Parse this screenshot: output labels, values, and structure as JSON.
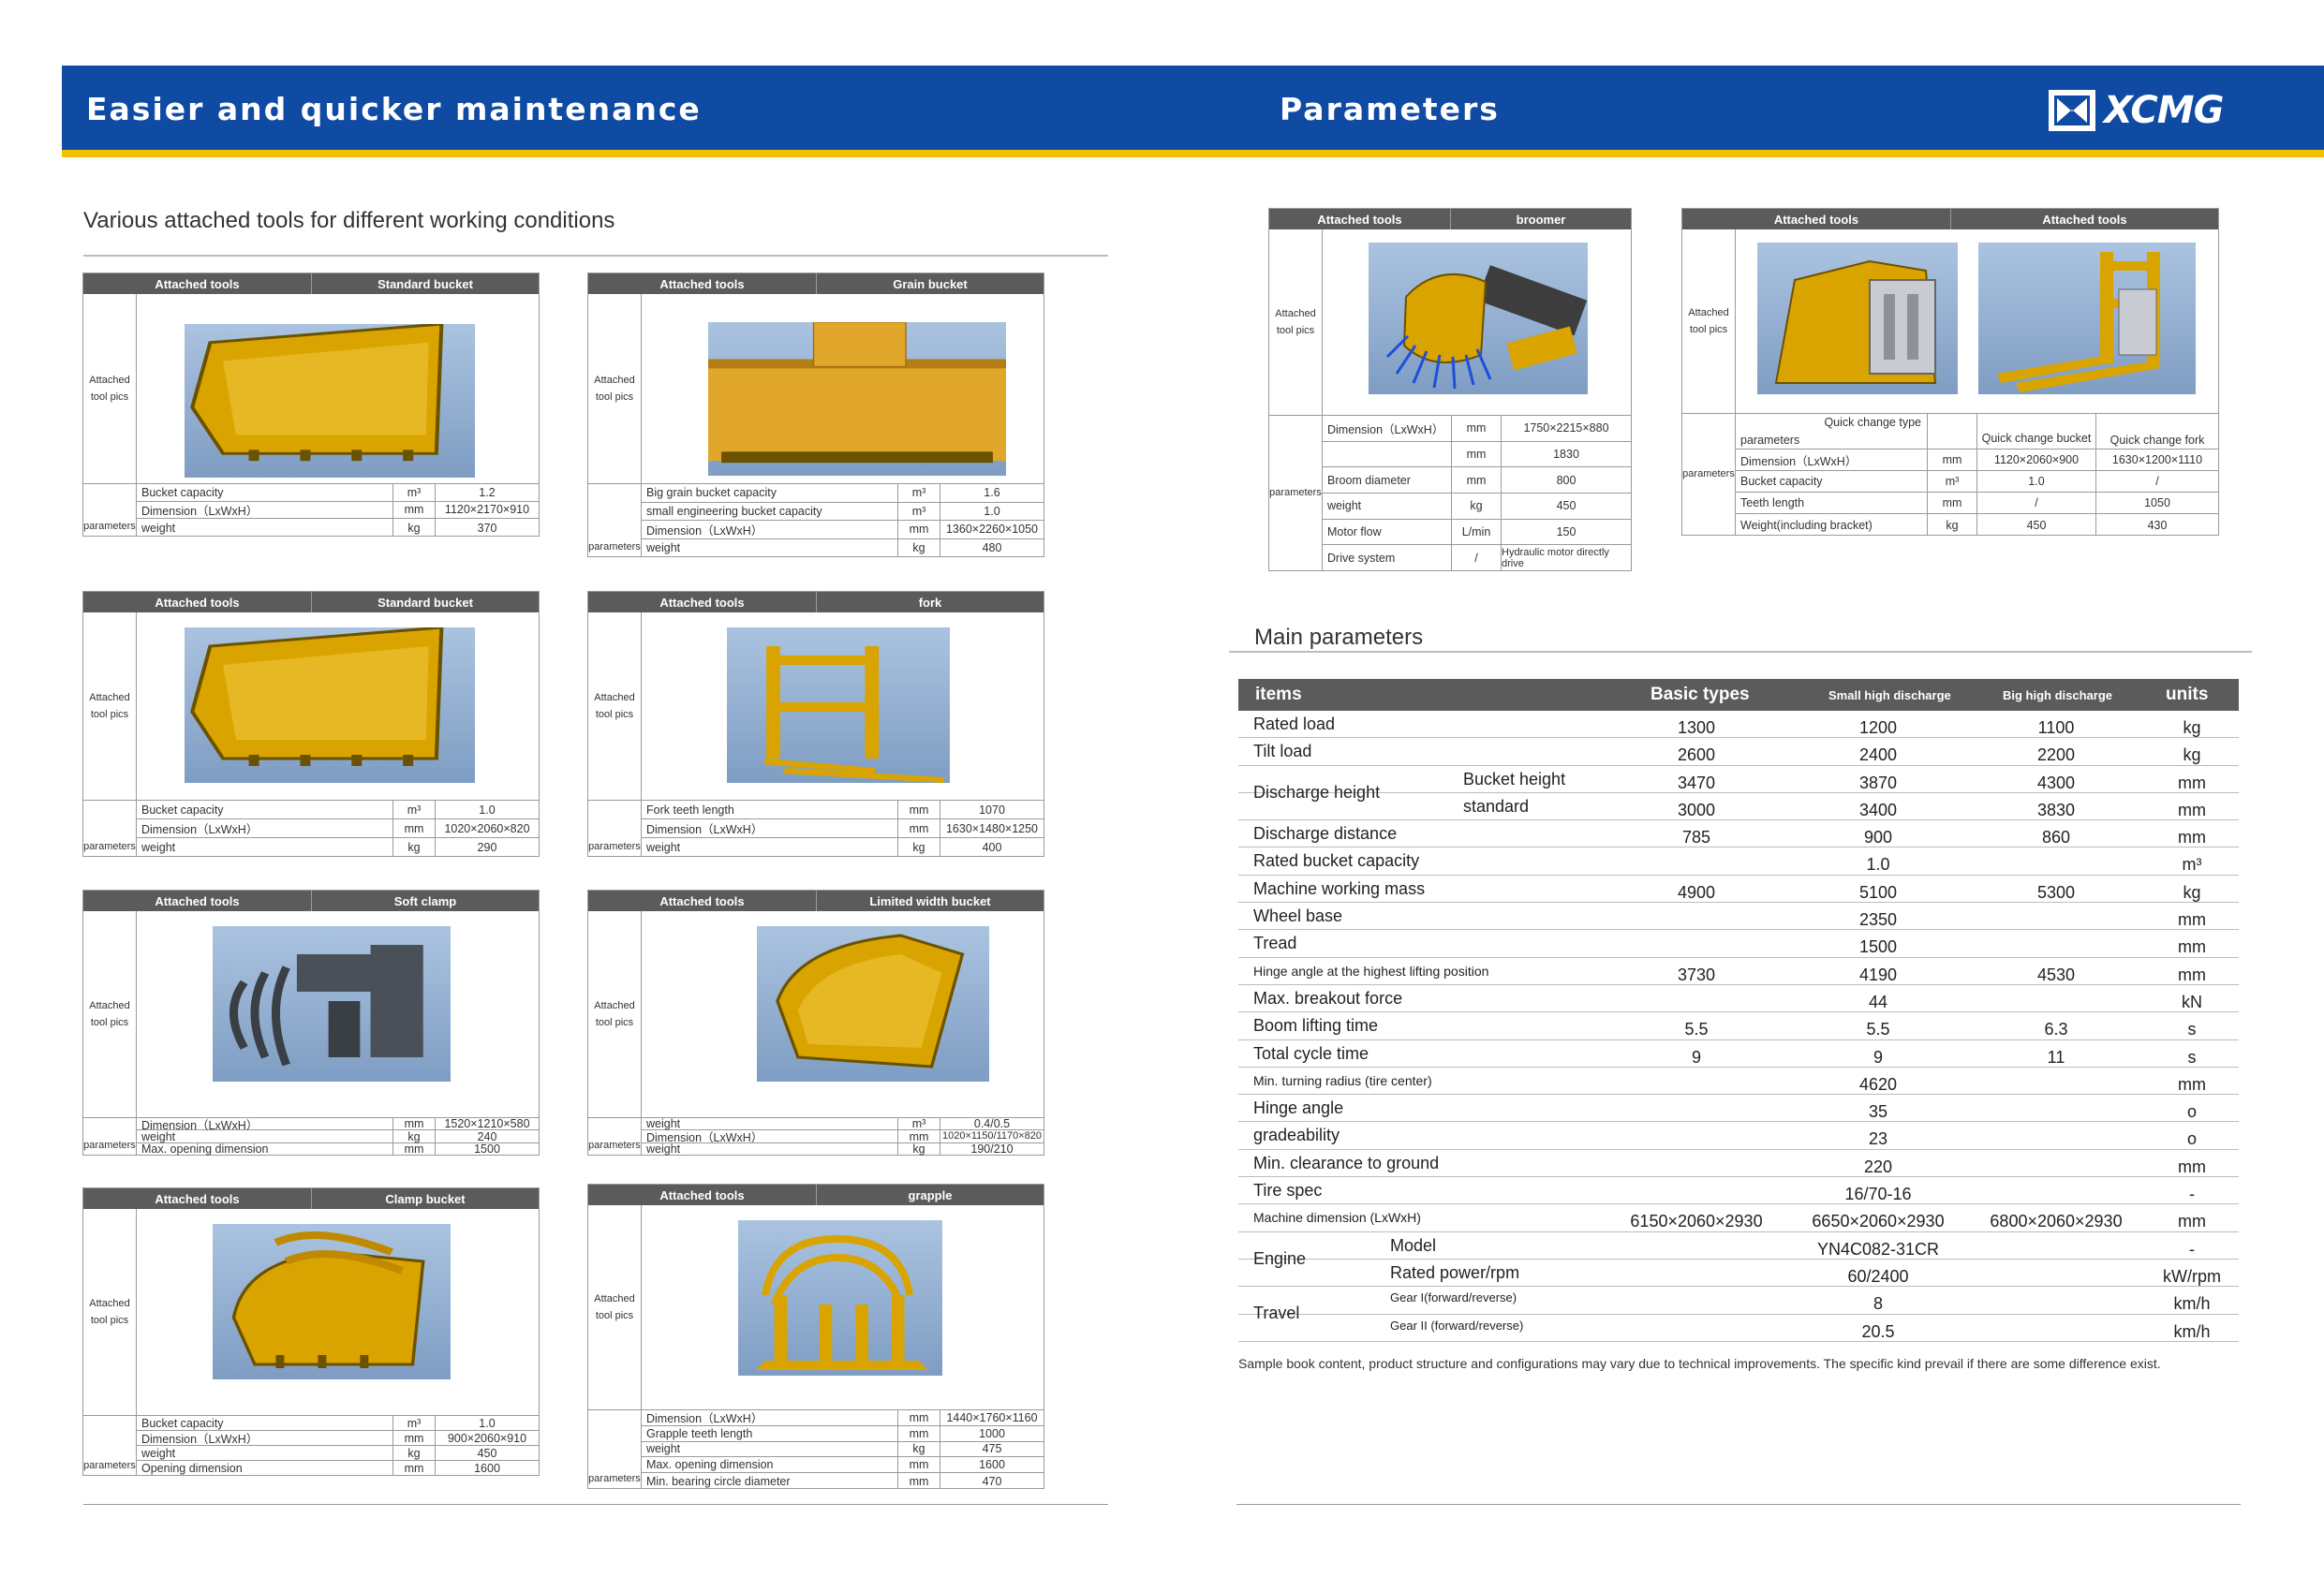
{
  "header": {
    "left_title": "Easier and quicker maintenance",
    "right_title": "Parameters",
    "logo_text": "XCMG",
    "banner_color": "#0f4aa3",
    "stripe_color": "#f2c100"
  },
  "left": {
    "section_title": "Various attached tools for different working conditions",
    "cards": [
      {
        "head": [
          "Attached tools",
          "Standard bucket"
        ],
        "pic_label": "Attached tool pics",
        "param_label": "parameters",
        "pic_icon": "bucket-icon",
        "rows": [
          [
            "Bucket capacity",
            "m³",
            "1.2"
          ],
          [
            "Dimension（LxWxH）",
            "mm",
            "1120×2170×910"
          ],
          [
            "weight",
            "kg",
            "370"
          ]
        ]
      },
      {
        "head": [
          "Attached tools",
          "Grain bucket"
        ],
        "pic_label": "Attached tool pics",
        "param_label": "parameters",
        "pic_icon": "grain-bucket-icon",
        "rows": [
          [
            "Big grain bucket capacity",
            "m³",
            "1.6"
          ],
          [
            "small engineering bucket capacity",
            "m³",
            "1.0"
          ],
          [
            "Dimension（LxWxH）",
            "mm",
            "1360×2260×1050"
          ],
          [
            "weight",
            "kg",
            "480"
          ]
        ]
      },
      {
        "head": [
          "Attached tools",
          "Standard bucket"
        ],
        "pic_label": "Attached tool pics",
        "param_label": "parameters",
        "pic_icon": "bucket-icon",
        "rows": [
          [
            "Bucket capacity",
            "m³",
            "1.0"
          ],
          [
            "Dimension（LxWxH）",
            "mm",
            "1020×2060×820"
          ],
          [
            "weight",
            "kg",
            "290"
          ]
        ]
      },
      {
        "head": [
          "Attached tools",
          "fork"
        ],
        "pic_label": "Attached tool pics",
        "param_label": "parameters",
        "pic_icon": "fork-icon",
        "rows": [
          [
            "Fork teeth length",
            "mm",
            "1070"
          ],
          [
            "Dimension（LxWxH）",
            "mm",
            "1630×1480×1250"
          ],
          [
            "weight",
            "kg",
            "400"
          ]
        ]
      },
      {
        "head": [
          "Attached tools",
          "Soft clamp"
        ],
        "pic_label": "Attached tool pics",
        "param_label": "parameters",
        "pic_icon": "soft-clamp-icon",
        "rows": [
          [
            "Dimension（LxWxH）",
            "mm",
            "1520×1210×580"
          ],
          [
            "weight",
            "kg",
            "240"
          ],
          [
            "Max. opening dimension",
            "mm",
            "1500"
          ]
        ]
      },
      {
        "head": [
          "Attached tools",
          "Limited width bucket"
        ],
        "pic_label": "Attached tool pics",
        "param_label": "parameters",
        "pic_icon": "limited-bucket-icon",
        "rows": [
          [
            "weight",
            "m³",
            "0.4/0.5"
          ],
          [
            "Dimension（LxWxH）",
            "mm",
            "1020×1150/1170×820"
          ],
          [
            "weight",
            "kg",
            "190/210"
          ]
        ]
      },
      {
        "head": [
          "Attached tools",
          "Clamp bucket"
        ],
        "pic_label": "Attached tool pics",
        "param_label": "parameters",
        "pic_icon": "clamp-bucket-icon",
        "rows": [
          [
            "Bucket capacity",
            "m³",
            "1.0"
          ],
          [
            "Dimension（LxWxH）",
            "mm",
            "900×2060×910"
          ],
          [
            "weight",
            "kg",
            "450"
          ],
          [
            "Opening dimension",
            "mm",
            "1600"
          ]
        ]
      },
      {
        "head": [
          "Attached tools",
          "grapple"
        ],
        "pic_label": "Attached tool pics",
        "param_label": "parameters",
        "pic_icon": "grapple-icon",
        "rows": [
          [
            "Dimension（LxWxH）",
            "mm",
            "1440×1760×1160"
          ],
          [
            "Grapple teeth length",
            "mm",
            "1000"
          ],
          [
            "weight",
            "kg",
            "475"
          ],
          [
            "Max. opening dimension",
            "mm",
            "1600"
          ],
          [
            "Min. bearing circle diameter",
            "mm",
            "470"
          ]
        ]
      }
    ]
  },
  "right": {
    "broomer": {
      "head": [
        "Attached tools",
        "broomer"
      ],
      "pic_label": "Attached tool pics",
      "param_label": "parameters",
      "pic_icon": "broomer-icon",
      "rows": [
        [
          "Dimension（LxWxH）",
          "mm",
          "1750×2215×880"
        ],
        [
          "",
          "mm",
          "1830"
        ],
        [
          "Broom diameter",
          "mm",
          "800"
        ],
        [
          "weight",
          "kg",
          "450"
        ],
        [
          "Motor flow",
          "L/min",
          "150"
        ],
        [
          "Drive system",
          "/",
          "Hydraulic motor directly drive"
        ]
      ]
    },
    "quick": {
      "head": [
        "Attached tools",
        "Attached tools"
      ],
      "pic_label": "Attached tool pics",
      "param_label": "parameters",
      "pic_icons": [
        "quick-change-bucket-icon",
        "quick-change-fork-icon"
      ],
      "type_label": "Quick change type",
      "param_col": "parameters",
      "cols": [
        "Quick change bucket",
        "Quick change fork"
      ],
      "rows": [
        [
          "Dimension（LxWxH）",
          "mm",
          "1120×2060×900",
          "1630×1200×1110"
        ],
        [
          "Bucket capacity",
          "m³",
          "1.0",
          "/"
        ],
        [
          "Teeth length",
          "mm",
          "/",
          "1050"
        ],
        [
          "Weight(including bracket)",
          "kg",
          "450",
          "430"
        ]
      ]
    },
    "main_title": "Main parameters",
    "main_head": {
      "items": "items",
      "basic": "Basic types",
      "small": "Small high discharge",
      "big": "Big high discharge",
      "units": "units"
    },
    "main_rows": [
      {
        "label": "Rated load",
        "basic": "1300",
        "small": "1200",
        "big": "1100",
        "unit": "kg"
      },
      {
        "label": "Tilt load",
        "basic": "2600",
        "small": "2400",
        "big": "2200",
        "unit": "kg"
      },
      {
        "label": "Discharge height",
        "sub": "Bucket height",
        "basic": "3470",
        "small": "3870",
        "big": "4300",
        "unit": "mm"
      },
      {
        "label": "",
        "sub": "standard",
        "basic": "3000",
        "small": "3400",
        "big": "3830",
        "unit": "mm"
      },
      {
        "label": "Discharge distance",
        "basic": "785",
        "small": "900",
        "big": "860",
        "unit": "mm"
      },
      {
        "label": "Rated bucket capacity",
        "small": "1.0",
        "unit": "m³"
      },
      {
        "label": "Machine working mass",
        "basic": "4900",
        "small": "5100",
        "big": "5300",
        "unit": "kg"
      },
      {
        "label": "Wheel base",
        "small": "2350",
        "unit": "mm"
      },
      {
        "label": "Tread",
        "small": "1500",
        "unit": "mm"
      },
      {
        "label": "Hinge angle at the highest lifting position",
        "basic": "3730",
        "small": "4190",
        "big": "4530",
        "unit": "mm"
      },
      {
        "label": "Max. breakout force",
        "small": "44",
        "unit": "kN"
      },
      {
        "label": "Boom lifting time",
        "basic": "5.5",
        "small": "5.5",
        "big": "6.3",
        "unit": "s"
      },
      {
        "label": "Total cycle time",
        "basic": "9",
        "small": "9",
        "big": "11",
        "unit": "s"
      },
      {
        "label": "Min. turning radius (tire center)",
        "small": "4620",
        "unit": "mm"
      },
      {
        "label": "Hinge angle",
        "small": "35",
        "unit": "o"
      },
      {
        "label": "gradeability",
        "small": "23",
        "unit": "o"
      },
      {
        "label": "Min. clearance to ground",
        "small": "220",
        "unit": "mm"
      },
      {
        "label": "Tire spec",
        "small": "16/70-16",
        "unit": "-"
      },
      {
        "label": "Machine dimension (LxWxH)",
        "basic": "6150×2060×2930",
        "small": "6650×2060×2930",
        "big": "6800×2060×2930",
        "unit": "mm"
      },
      {
        "label": "Engine",
        "sub": "Model",
        "small": "YN4C082-31CR",
        "unit": "-"
      },
      {
        "label": "",
        "sub": "Rated power/rpm",
        "small": "60/2400",
        "unit": "kW/rpm"
      },
      {
        "label": "Travel",
        "sub": "Gear I(forward/reverse)",
        "small": "8",
        "unit": "km/h"
      },
      {
        "label": "",
        "sub": "Gear II (forward/reverse)",
        "small": "20.5",
        "unit": "km/h"
      }
    ],
    "note": "Sample book content, product structure and configurations may vary due to technical improvements. The specific kind prevail if there are some difference exist."
  }
}
